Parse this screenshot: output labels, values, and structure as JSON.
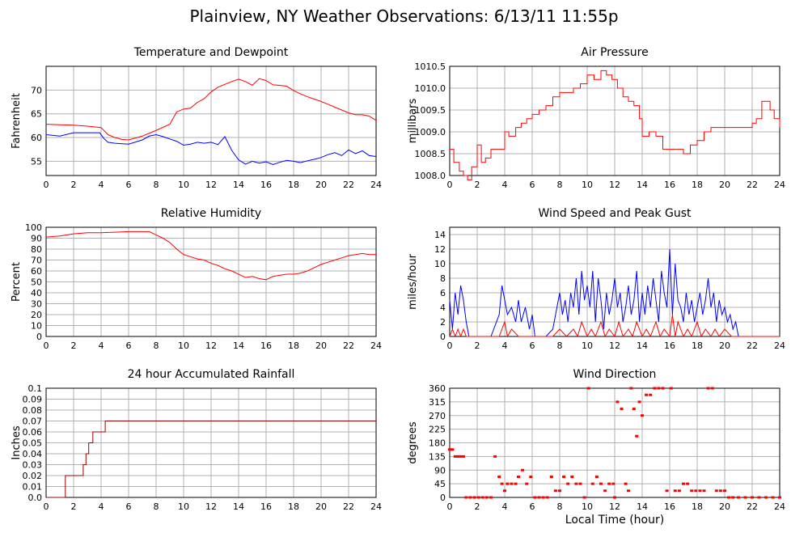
{
  "page": {
    "title": "Plainview, NY Weather Observations: 6/13/11 11:55p",
    "x_axis_label": "Local Time (hour)"
  },
  "colors": {
    "red": "#ff0000",
    "blue": "#0000ff",
    "grid": "#b0b0b0",
    "rain": "#990000"
  },
  "chart_data": [
    {
      "id": "temp",
      "type": "line",
      "title": "Temperature and Dewpoint",
      "xlabel": "",
      "ylabel": "Fahrenheit",
      "xlim": [
        0,
        24
      ],
      "ylim": [
        52,
        75
      ],
      "xticks": [
        0,
        2,
        4,
        6,
        8,
        10,
        12,
        14,
        16,
        18,
        20,
        22,
        24
      ],
      "yticks": [
        55,
        60,
        65,
        70
      ],
      "series": [
        {
          "color": "#ff0000",
          "x": [
            0,
            1,
            2,
            3,
            4,
            4.5,
            5,
            5.5,
            6,
            7,
            8,
            9,
            9.5,
            10,
            10.5,
            11,
            11.5,
            12,
            12.5,
            13,
            13.5,
            14,
            14.5,
            15,
            15.5,
            16,
            16.5,
            17,
            17.5,
            18,
            18.5,
            19,
            19.5,
            20,
            20.5,
            21,
            21.5,
            22,
            22.5,
            23,
            23.5,
            24
          ],
          "y": [
            62.8,
            62.7,
            62.6,
            62.4,
            62.1,
            60.6,
            60.0,
            59.6,
            59.5,
            60.3,
            61.5,
            62.8,
            65.4,
            66.0,
            66.2,
            67.4,
            68.2,
            69.6,
            70.6,
            71.2,
            71.8,
            72.3,
            71.8,
            71.0,
            72.4,
            72.0,
            71.1,
            71.0,
            70.8,
            69.9,
            69.2,
            68.6,
            68.1,
            67.6,
            67.0,
            66.4,
            65.8,
            65.2,
            64.8,
            64.8,
            64.5,
            63.6
          ]
        },
        {
          "color": "#0000ff",
          "x": [
            0,
            1,
            2,
            3,
            3.9,
            4.2,
            4.5,
            5,
            6,
            7,
            7.5,
            8,
            8.5,
            9,
            9.5,
            10,
            10.5,
            11,
            11.5,
            12,
            12.5,
            13,
            13.5,
            14,
            14.5,
            15,
            15.5,
            16,
            16.5,
            17,
            17.5,
            18,
            18.5,
            19,
            19.5,
            20,
            20.5,
            21,
            21.5,
            22,
            22.5,
            23,
            23.5,
            24
          ],
          "y": [
            60.6,
            60.3,
            61.0,
            61.0,
            61.0,
            59.8,
            59.0,
            58.8,
            58.6,
            59.5,
            60.3,
            60.6,
            60.2,
            59.7,
            59.2,
            58.4,
            58.6,
            59.0,
            58.8,
            59.0,
            58.5,
            60.2,
            57.3,
            55.3,
            54.4,
            55.0,
            54.6,
            54.9,
            54.3,
            54.8,
            55.2,
            55.0,
            54.7,
            55.1,
            55.4,
            55.8,
            56.4,
            56.8,
            56.2,
            57.4,
            56.6,
            57.2,
            56.2,
            56.0
          ]
        }
      ]
    },
    {
      "id": "pressure",
      "type": "line",
      "title": "Air Pressure",
      "xlabel": "",
      "ylabel": "millibars",
      "xlim": [
        0,
        24
      ],
      "ylim": [
        1008.0,
        1010.5
      ],
      "xticks": [
        0,
        2,
        4,
        6,
        8,
        10,
        12,
        14,
        16,
        18,
        20,
        22,
        24
      ],
      "yticks": [
        1008.0,
        1008.5,
        1009.0,
        1009.5,
        1010.0,
        1010.5
      ],
      "ytick_labels": [
        "1008.0",
        "1008.5",
        "1009.0",
        "1009.5",
        "1010.0",
        "1010.5"
      ],
      "series": [
        {
          "color": "#ff0000",
          "step": true,
          "x": [
            0,
            0.3,
            0.7,
            1.0,
            1.3,
            1.6,
            2.0,
            2.3,
            2.6,
            3.0,
            3.4,
            4.0,
            4.3,
            4.8,
            5.2,
            5.6,
            6.0,
            6.5,
            7.0,
            7.5,
            8.0,
            8.5,
            9.0,
            9.5,
            10.0,
            10.5,
            11.0,
            11.4,
            11.8,
            12.2,
            12.6,
            13.0,
            13.4,
            13.8,
            14.0,
            14.5,
            15.0,
            15.5,
            16.0,
            16.5,
            17.0,
            17.5,
            18.0,
            18.5,
            19.0,
            19.5,
            20.0,
            20.5,
            21.0,
            21.5,
            22.0,
            22.3,
            22.7,
            23.0,
            23.3,
            23.6,
            24.0
          ],
          "y": [
            1008.6,
            1008.3,
            1008.1,
            1008.0,
            1007.9,
            1008.2,
            1008.7,
            1008.3,
            1008.4,
            1008.6,
            1008.6,
            1009.0,
            1008.9,
            1009.1,
            1009.2,
            1009.3,
            1009.4,
            1009.5,
            1009.6,
            1009.8,
            1009.9,
            1009.9,
            1010.0,
            1010.1,
            1010.3,
            1010.2,
            1010.4,
            1010.3,
            1010.2,
            1010.0,
            1009.8,
            1009.7,
            1009.6,
            1009.3,
            1008.9,
            1009.0,
            1008.9,
            1008.6,
            1008.6,
            1008.6,
            1008.5,
            1008.7,
            1008.8,
            1009.0,
            1009.1,
            1009.1,
            1009.1,
            1009.1,
            1009.1,
            1009.1,
            1009.2,
            1009.3,
            1009.7,
            1009.7,
            1009.5,
            1009.3,
            1009.1
          ]
        }
      ]
    },
    {
      "id": "humidity",
      "type": "line",
      "title": "Relative Humidity",
      "xlabel": "",
      "ylabel": "Percent",
      "xlim": [
        0,
        24
      ],
      "ylim": [
        0,
        100
      ],
      "xticks": [
        0,
        2,
        4,
        6,
        8,
        10,
        12,
        14,
        16,
        18,
        20,
        22,
        24
      ],
      "yticks": [
        0,
        10,
        20,
        30,
        40,
        50,
        60,
        70,
        80,
        90,
        100
      ],
      "series": [
        {
          "color": "#ff0000",
          "x": [
            0,
            1,
            2,
            3,
            4,
            5,
            6,
            7,
            7.5,
            8,
            8.5,
            9,
            9.5,
            10,
            10.5,
            11,
            11.5,
            12,
            12.5,
            13,
            13.5,
            14,
            14.5,
            15,
            15.5,
            16,
            16.5,
            17,
            17.5,
            18,
            18.5,
            19,
            19.5,
            20,
            20.5,
            21,
            21.5,
            22,
            22.5,
            23,
            23.5,
            24
          ],
          "y": [
            91,
            92,
            94,
            95,
            95,
            95.5,
            96,
            96,
            96,
            93,
            90,
            86,
            80,
            75,
            73,
            71,
            70,
            67,
            65,
            62,
            60,
            57,
            54,
            55,
            53,
            52,
            55,
            56,
            57,
            57,
            58,
            60,
            63,
            66,
            68,
            70,
            72,
            74,
            75,
            76,
            75,
            75
          ]
        }
      ]
    },
    {
      "id": "wind",
      "type": "line",
      "title": "Wind Speed and Peak Gust",
      "xlabel": "",
      "ylabel": "miles/hour",
      "xlim": [
        0,
        24
      ],
      "ylim": [
        0,
        15
      ],
      "xticks": [
        0,
        2,
        4,
        6,
        8,
        10,
        12,
        14,
        16,
        18,
        20,
        22,
        24
      ],
      "yticks": [
        0,
        2,
        4,
        6,
        8,
        10,
        12,
        14
      ],
      "series": [
        {
          "color": "#0000ff",
          "x": [
            0,
            0.2,
            0.4,
            0.6,
            0.8,
            1.0,
            1.2,
            1.4,
            1.6,
            2.0,
            3.0,
            3.6,
            3.8,
            4.0,
            4.2,
            4.5,
            4.8,
            5.0,
            5.2,
            5.5,
            5.8,
            6.0,
            6.2,
            6.5,
            7.0,
            7.5,
            7.8,
            8.0,
            8.2,
            8.4,
            8.6,
            8.8,
            9.0,
            9.2,
            9.4,
            9.6,
            9.8,
            10.0,
            10.2,
            10.4,
            10.6,
            10.8,
            11.0,
            11.2,
            11.4,
            11.6,
            11.8,
            12.0,
            12.2,
            12.4,
            12.6,
            12.8,
            13.0,
            13.2,
            13.4,
            13.6,
            13.8,
            14.0,
            14.2,
            14.4,
            14.6,
            14.8,
            15.0,
            15.2,
            15.4,
            15.6,
            15.8,
            16.0,
            16.2,
            16.4,
            16.6,
            16.8,
            17.0,
            17.2,
            17.4,
            17.6,
            17.8,
            18.0,
            18.2,
            18.4,
            18.6,
            18.8,
            19.0,
            19.2,
            19.4,
            19.6,
            19.8,
            20.0,
            20.2,
            20.4,
            20.6,
            20.8,
            21.0,
            22.0,
            24.0
          ],
          "y": [
            5,
            1,
            6,
            3,
            7,
            5,
            2,
            0,
            0,
            0,
            0,
            3,
            7,
            5,
            3,
            4,
            2,
            5,
            2,
            4,
            1,
            3,
            0,
            0,
            0,
            1,
            4,
            6,
            3,
            5,
            2,
            6,
            4,
            8,
            3,
            9,
            5,
            7,
            4,
            9,
            2,
            8,
            5,
            1,
            6,
            3,
            5,
            8,
            4,
            6,
            2,
            4,
            7,
            3,
            5,
            9,
            2,
            6,
            3,
            7,
            4,
            8,
            5,
            2,
            9,
            6,
            4,
            12,
            3,
            10,
            5,
            4,
            2,
            6,
            3,
            5,
            2,
            4,
            6,
            3,
            5,
            8,
            4,
            6,
            2,
            5,
            3,
            4,
            2,
            3,
            1,
            2,
            0,
            0,
            0
          ]
        },
        {
          "color": "#ff0000",
          "x": [
            0,
            0.2,
            0.4,
            0.6,
            0.8,
            1.0,
            1.2,
            1.4,
            2.0,
            3.6,
            3.8,
            4.0,
            4.2,
            4.5,
            5.0,
            6.0,
            7.5,
            8.0,
            8.5,
            9.0,
            9.3,
            9.6,
            10.0,
            10.3,
            10.6,
            11.0,
            11.3,
            11.6,
            12.0,
            12.3,
            12.6,
            13.0,
            13.3,
            13.6,
            14.0,
            14.3,
            14.6,
            15.0,
            15.3,
            15.6,
            16.0,
            16.2,
            16.4,
            16.6,
            17.0,
            17.3,
            17.6,
            18.0,
            18.3,
            18.6,
            19.0,
            19.3,
            19.6,
            20.0,
            20.5,
            21.0,
            24.0
          ],
          "y": [
            0,
            1,
            0,
            1,
            0,
            1,
            0,
            0,
            0,
            0,
            1,
            2,
            0,
            1,
            0,
            0,
            0,
            1,
            0,
            1,
            0,
            2,
            0,
            1,
            0,
            2,
            0,
            1,
            0,
            2,
            0,
            1,
            0,
            2,
            0,
            1,
            0,
            2,
            0,
            1,
            0,
            3,
            0,
            2,
            0,
            1,
            0,
            2,
            0,
            1,
            0,
            1,
            0,
            1,
            0,
            0,
            0
          ]
        }
      ]
    },
    {
      "id": "rain",
      "type": "line",
      "title": "24 hour Accumulated Rainfall",
      "xlabel": "",
      "ylabel": "Inches",
      "xlim": [
        0,
        24
      ],
      "ylim": [
        0,
        0.1
      ],
      "xticks": [
        0,
        2,
        4,
        6,
        8,
        10,
        12,
        14,
        16,
        18,
        20,
        22,
        24
      ],
      "yticks": [
        0.0,
        0.01,
        0.02,
        0.03,
        0.04,
        0.05,
        0.06,
        0.07,
        0.08,
        0.09,
        0.1
      ],
      "ytick_labels": [
        "0.0",
        "0.01",
        "0.02",
        "0.03",
        "0.04",
        "0.05",
        "0.06",
        "0.07",
        "0.08",
        "0.09",
        "0.1"
      ],
      "series": [
        {
          "color": "#990000",
          "step": true,
          "x": [
            0,
            1.4,
            2.7,
            2.9,
            3.1,
            3.4,
            3.7,
            4.3,
            4.6,
            24
          ],
          "y": [
            0,
            0.02,
            0.03,
            0.04,
            0.05,
            0.06,
            0.06,
            0.07,
            0.07,
            0.07
          ]
        }
      ]
    },
    {
      "id": "direction",
      "type": "scatter",
      "title": "Wind Direction",
      "xlabel": "",
      "ylabel": "degrees",
      "xlim": [
        0,
        24
      ],
      "ylim": [
        0,
        360
      ],
      "xticks": [
        0,
        2,
        4,
        6,
        8,
        10,
        12,
        14,
        16,
        18,
        20,
        22,
        24
      ],
      "yticks": [
        0,
        45,
        90,
        135,
        180,
        225,
        270,
        315,
        360
      ],
      "series": [
        {
          "color": "#ff0000",
          "x": [
            0,
            0.2,
            0.4,
            0.6,
            0.8,
            1.0,
            1.2,
            1.5,
            1.8,
            2.1,
            2.4,
            2.7,
            3.0,
            3.3,
            3.6,
            3.8,
            4.0,
            4.2,
            4.5,
            4.8,
            5.0,
            5.3,
            5.6,
            5.9,
            6.2,
            6.5,
            6.8,
            7.1,
            7.4,
            7.7,
            8.0,
            8.3,
            8.6,
            8.9,
            9.2,
            9.5,
            9.8,
            10.1,
            10.4,
            10.7,
            11.0,
            11.3,
            11.6,
            11.9,
            12.0,
            12.2,
            12.5,
            12.8,
            13.0,
            13.2,
            13.4,
            13.6,
            13.8,
            14.0,
            14.3,
            14.6,
            14.9,
            15.2,
            15.5,
            15.8,
            16.1,
            16.4,
            16.7,
            17.0,
            17.3,
            17.6,
            17.9,
            18.2,
            18.5,
            18.8,
            19.1,
            19.4,
            19.7,
            20.0,
            20.3,
            20.6,
            21.0,
            21.5,
            22.0,
            22.5,
            23.0,
            23.5,
            24.0
          ],
          "y": [
            158,
            158,
            135,
            135,
            135,
            135,
            0,
            0,
            0,
            0,
            0,
            0,
            0,
            135,
            68,
            45,
            22,
            45,
            45,
            45,
            68,
            90,
            45,
            68,
            0,
            0,
            0,
            0,
            68,
            22,
            22,
            68,
            45,
            68,
            45,
            45,
            0,
            360,
            45,
            68,
            45,
            22,
            45,
            45,
            0,
            315,
            292,
            45,
            22,
            360,
            292,
            202,
            315,
            270,
            338,
            338,
            360,
            360,
            360,
            22,
            360,
            22,
            22,
            45,
            45,
            22,
            22,
            22,
            22,
            360,
            360,
            22,
            22,
            22,
            0,
            0,
            0,
            0,
            0,
            0,
            0,
            0,
            0
          ]
        }
      ]
    }
  ]
}
